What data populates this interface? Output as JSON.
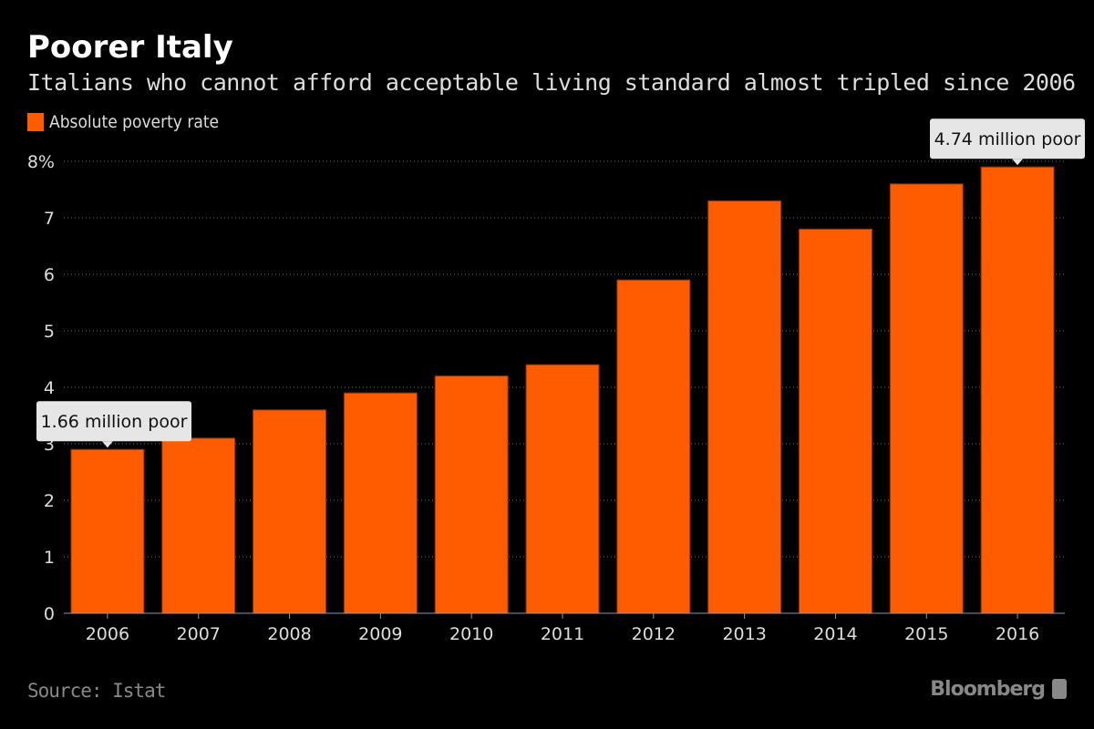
{
  "header": {
    "title": "Poorer Italy",
    "subtitle": "Italians who cannot afford acceptable living standard almost tripled since 2006"
  },
  "footer": {
    "source": "Source: Istat",
    "brand": "Bloomberg"
  },
  "colors": {
    "bar": "#ff5c00",
    "background": "#000000",
    "annotation_bg": "#e6e6e6"
  },
  "chart_data": {
    "type": "bar",
    "title": "Poorer Italy",
    "subtitle": "Italians who cannot afford acceptable living standard almost tripled since 2006",
    "categories": [
      "2006",
      "2007",
      "2008",
      "2009",
      "2010",
      "2011",
      "2012",
      "2013",
      "2014",
      "2015",
      "2016"
    ],
    "series": [
      {
        "name": "Absolute poverty rate",
        "values": [
          2.9,
          3.1,
          3.6,
          3.9,
          4.2,
          4.4,
          5.9,
          7.3,
          6.8,
          7.6,
          7.9
        ]
      }
    ],
    "xlabel": "",
    "ylabel": "",
    "ylim": [
      0,
      8
    ],
    "yticks": [
      0,
      1,
      2,
      3,
      4,
      5,
      6,
      7,
      8
    ],
    "ytick_labels": [
      "0",
      "1",
      "2",
      "3",
      "4",
      "5",
      "6",
      "7",
      "8%"
    ],
    "grid": true,
    "legend": "top-left",
    "annotations": [
      {
        "category": "2006",
        "text": "1.66 million poor"
      },
      {
        "category": "2016",
        "text": "4.74 million poor"
      }
    ]
  }
}
